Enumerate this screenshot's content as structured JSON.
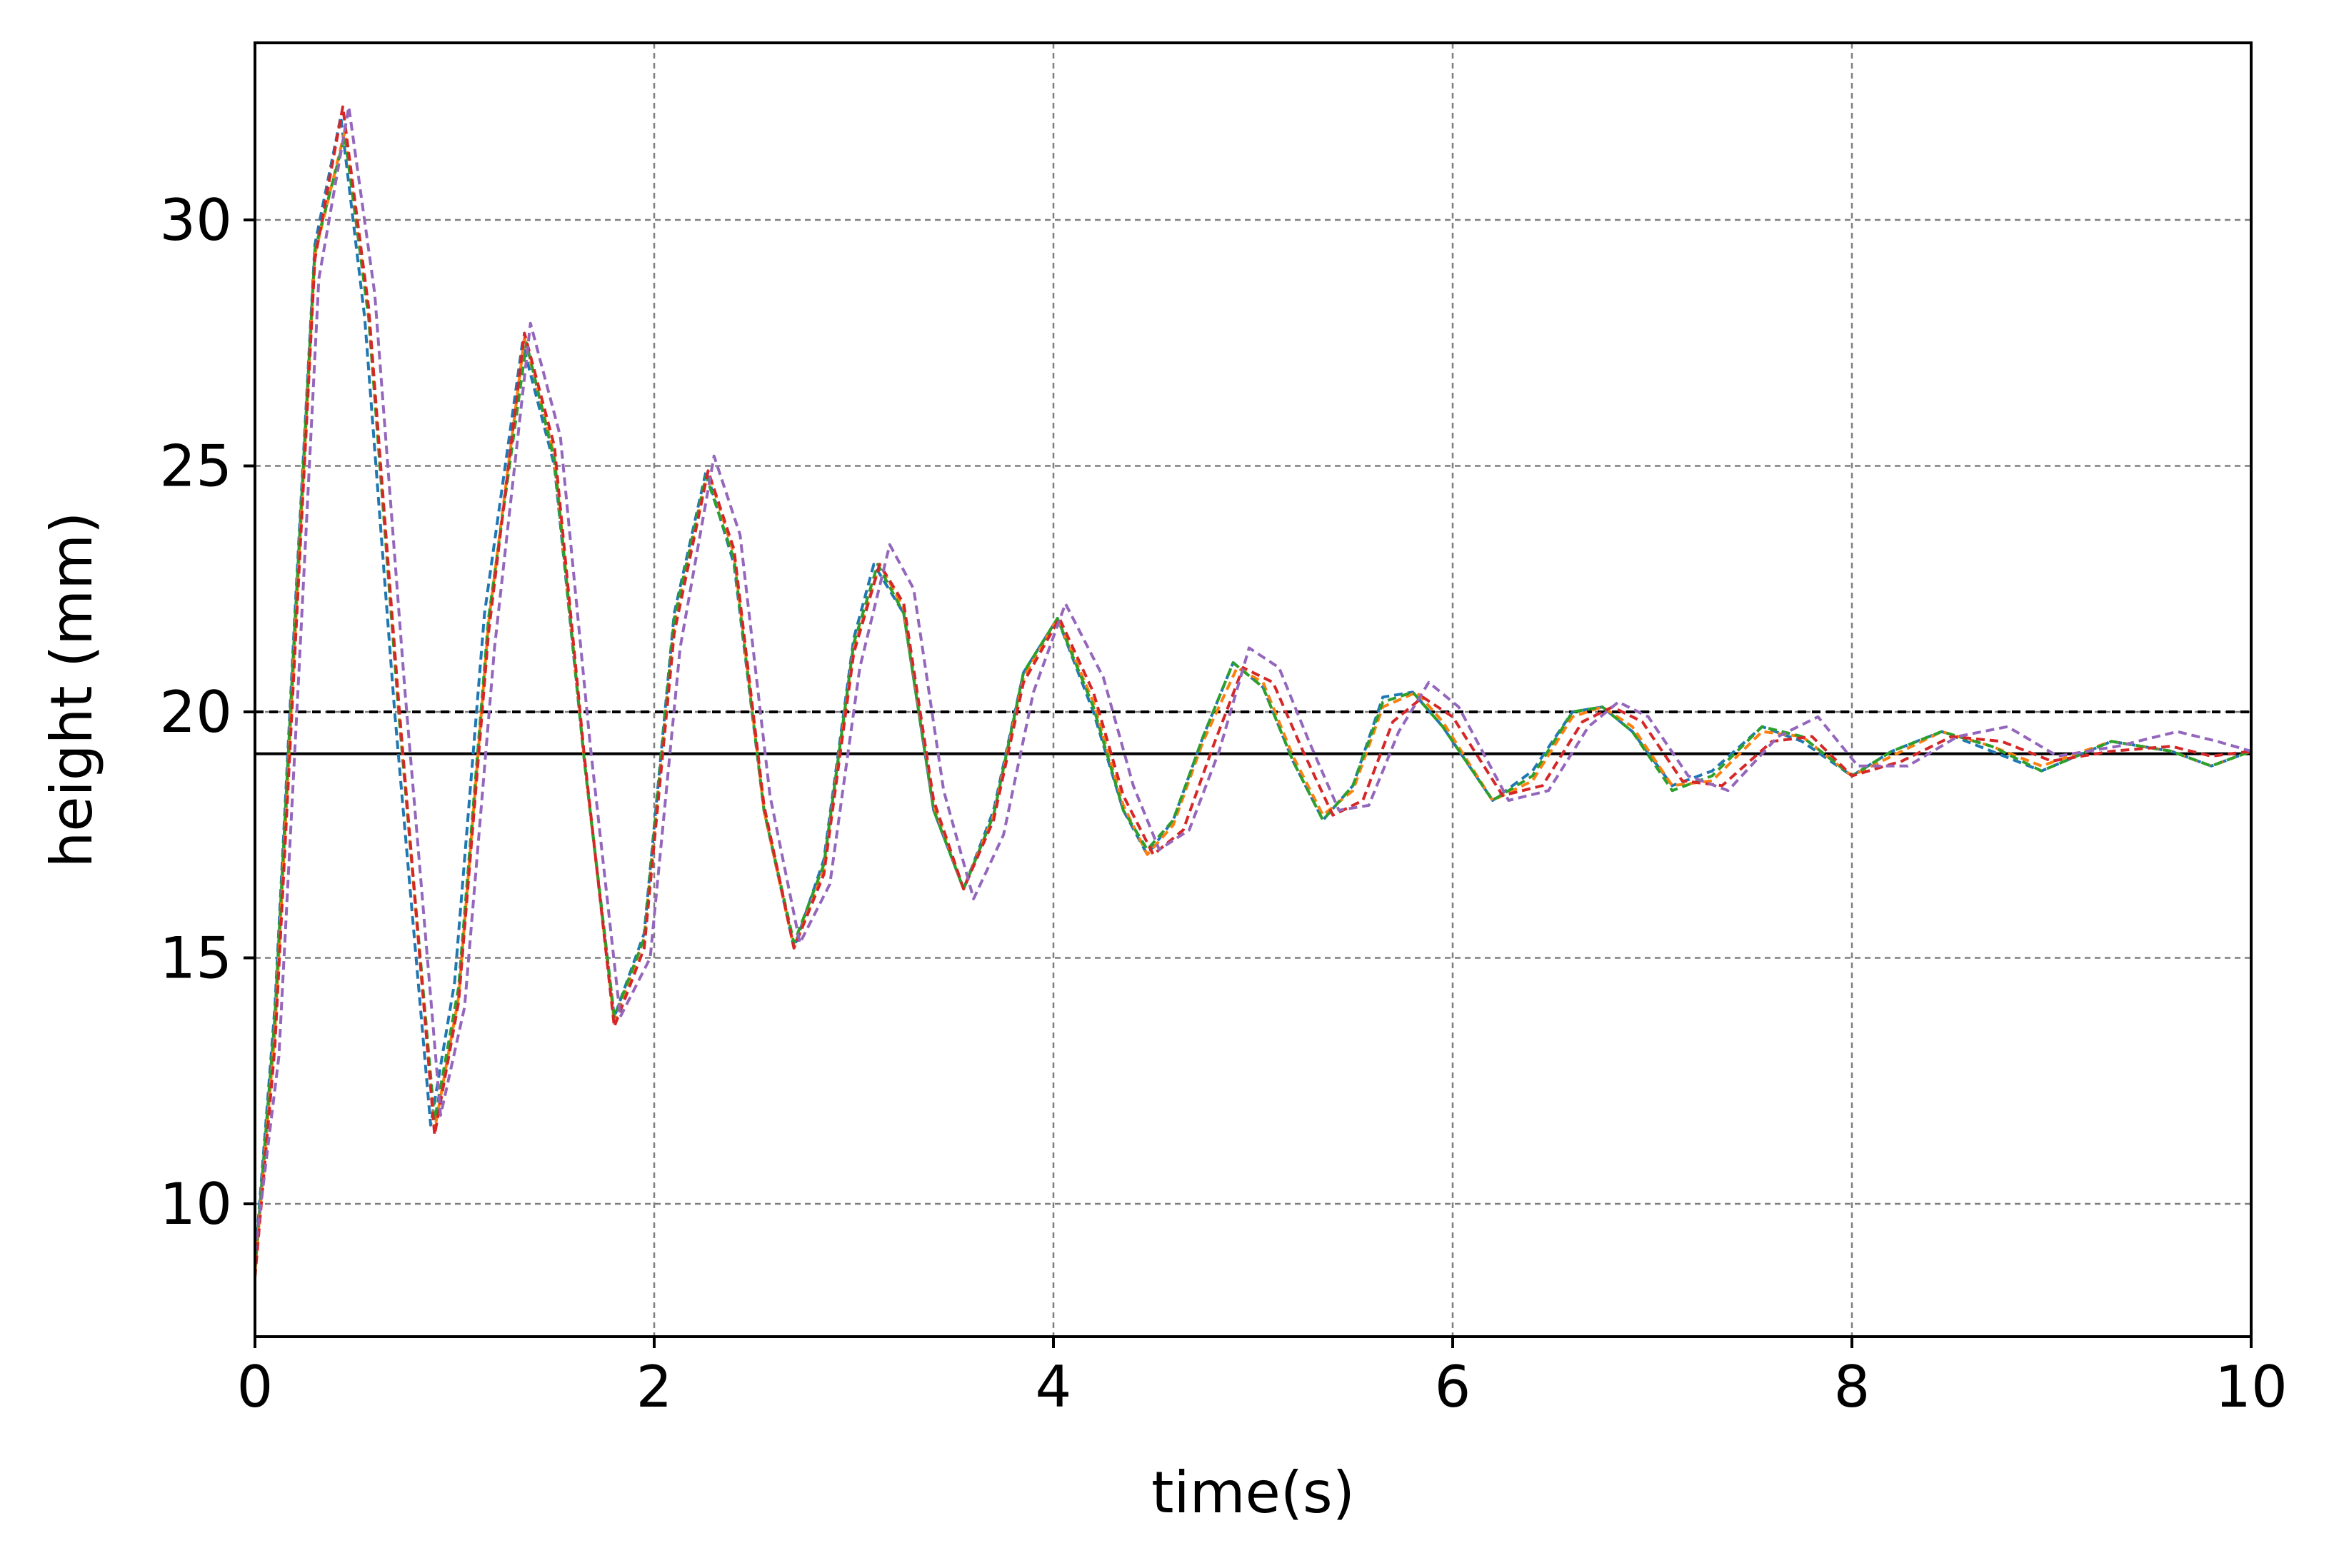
{
  "chart_data": {
    "type": "line",
    "title": "",
    "xlabel": "time(s)",
    "ylabel": "height (mm)",
    "xlim": [
      0,
      10
    ],
    "ylim": [
      7.3,
      33.6
    ],
    "xticks": [
      0,
      2,
      4,
      6,
      8,
      10
    ],
    "yticks": [
      10,
      15,
      20,
      25,
      30
    ],
    "grid": true,
    "legend": "none",
    "reference_lines": [
      {
        "y": 20.0,
        "style": "dashed",
        "color": "#000000"
      },
      {
        "y": 19.15,
        "style": "solid",
        "color": "#000000"
      }
    ],
    "series": [
      {
        "color": "#1f77b4",
        "style": "dashed",
        "x": [
          0,
          0.1,
          0.2,
          0.3,
          0.43,
          0.55,
          0.7,
          0.88,
          1.0,
          1.15,
          1.34,
          1.5,
          1.65,
          1.8,
          1.95,
          2.1,
          2.26,
          2.4,
          2.55,
          2.7,
          2.85,
          3.0,
          3.1,
          3.25,
          3.4,
          3.55,
          3.7,
          3.85,
          4.02,
          4.2,
          4.35,
          4.47,
          4.6,
          4.75,
          4.9,
          5.05,
          5.2,
          5.35,
          5.5,
          5.65,
          5.8,
          5.95,
          6.2,
          6.4,
          6.6,
          6.75,
          6.9,
          7.1,
          7.3,
          7.55,
          7.75,
          8.0,
          8.2,
          8.45,
          8.7,
          8.95,
          9.3,
          9.6,
          9.8,
          10
        ],
        "y": [
          8.8,
          14,
          22,
          29.5,
          32.1,
          28,
          20,
          11.6,
          14.5,
          22,
          27.5,
          25,
          19,
          13.8,
          15.5,
          22,
          24.9,
          23,
          18,
          15.2,
          17,
          21.5,
          23.0,
          22,
          18,
          16.4,
          18,
          20.8,
          21.9,
          20,
          18,
          17.1,
          17.8,
          19.5,
          21.0,
          20.5,
          19,
          17.8,
          18.5,
          20.3,
          20.4,
          19.7,
          18.2,
          18.8,
          20,
          20.1,
          19.6,
          18.5,
          18.8,
          19.7,
          19.4,
          18.7,
          19.2,
          19.6,
          19.2,
          18.8,
          19.4,
          19.2,
          18.9,
          19.2
        ]
      },
      {
        "color": "#ff7f0e",
        "style": "dashed",
        "x": [
          0,
          0.1,
          0.2,
          0.3,
          0.45,
          0.57,
          0.72,
          0.9,
          1.02,
          1.17,
          1.35,
          1.5,
          1.65,
          1.8,
          1.95,
          2.1,
          2.27,
          2.4,
          2.55,
          2.7,
          2.85,
          3.0,
          3.13,
          3.25,
          3.4,
          3.55,
          3.7,
          3.85,
          4.02,
          4.2,
          4.35,
          4.47,
          4.6,
          4.75,
          4.92,
          5.05,
          5.2,
          5.35,
          5.5,
          5.65,
          5.82,
          5.95,
          6.2,
          6.4,
          6.6,
          6.75,
          6.9,
          7.1,
          7.3,
          7.55,
          7.75,
          8.0,
          8.2,
          8.45,
          8.7,
          8.95,
          9.3,
          9.6,
          9.8,
          10
        ],
        "y": [
          8.6,
          13.5,
          21.5,
          29.3,
          31.8,
          28,
          20,
          11.5,
          14.2,
          21.8,
          27.6,
          25.2,
          19,
          13.7,
          15.4,
          21.8,
          24.9,
          23.2,
          18,
          15.2,
          16.8,
          21.3,
          23.0,
          22.1,
          18.1,
          16.4,
          17.9,
          20.7,
          21.9,
          20.2,
          18.1,
          17.1,
          17.7,
          19.4,
          20.9,
          20.6,
          19.1,
          17.9,
          18.4,
          20.1,
          20.4,
          19.8,
          18.2,
          18.6,
          19.9,
          20.1,
          19.7,
          18.5,
          18.6,
          19.6,
          19.5,
          18.7,
          19.1,
          19.6,
          19.3,
          18.9,
          19.4,
          19.2,
          18.9,
          19.2
        ]
      },
      {
        "color": "#2ca02c",
        "style": "dashed",
        "x": [
          0,
          0.1,
          0.2,
          0.3,
          0.45,
          0.57,
          0.72,
          0.9,
          1.02,
          1.17,
          1.36,
          1.5,
          1.65,
          1.8,
          1.95,
          2.1,
          2.26,
          2.4,
          2.55,
          2.7,
          2.85,
          3.0,
          3.12,
          3.25,
          3.4,
          3.55,
          3.7,
          3.85,
          4.02,
          4.2,
          4.35,
          4.47,
          4.6,
          4.75,
          4.9,
          5.05,
          5.2,
          5.35,
          5.5,
          5.65,
          5.8,
          5.95,
          6.2,
          6.4,
          6.6,
          6.75,
          6.9,
          7.1,
          7.3,
          7.55,
          7.75,
          8.0,
          8.2,
          8.45,
          8.7,
          8.95,
          9.3,
          9.6,
          9.8,
          10
        ],
        "y": [
          8.7,
          13.8,
          21.8,
          29.4,
          31.7,
          28,
          20,
          11.7,
          14.4,
          21.9,
          27.5,
          25.1,
          19,
          13.8,
          15.4,
          21.9,
          24.8,
          23.1,
          18,
          15.3,
          16.9,
          21.4,
          23.0,
          22.0,
          18.0,
          16.4,
          17.9,
          20.8,
          21.9,
          20.1,
          18.0,
          17.2,
          17.8,
          19.5,
          21.0,
          20.5,
          19.0,
          17.8,
          18.5,
          20.2,
          20.4,
          19.7,
          18.2,
          18.7,
          20.0,
          20.1,
          19.6,
          18.4,
          18.7,
          19.7,
          19.5,
          18.7,
          19.2,
          19.6,
          19.3,
          18.8,
          19.4,
          19.2,
          18.9,
          19.2
        ]
      },
      {
        "color": "#d62728",
        "style": "dashed",
        "x": [
          0,
          0.1,
          0.2,
          0.3,
          0.44,
          0.57,
          0.72,
          0.9,
          1.02,
          1.17,
          1.35,
          1.5,
          1.65,
          1.8,
          1.95,
          2.1,
          2.27,
          2.4,
          2.55,
          2.7,
          2.85,
          3.0,
          3.13,
          3.25,
          3.4,
          3.55,
          3.7,
          3.85,
          4.03,
          4.2,
          4.35,
          4.5,
          4.65,
          4.8,
          4.95,
          5.1,
          5.25,
          5.4,
          5.55,
          5.7,
          5.85,
          6.0,
          6.25,
          6.45,
          6.65,
          6.8,
          6.95,
          7.15,
          7.35,
          7.6,
          7.8,
          8.0,
          8.25,
          8.5,
          8.75,
          9.0,
          9.3,
          9.6,
          9.8,
          10
        ],
        "y": [
          8.5,
          13.2,
          21.2,
          29.2,
          32.3,
          28.2,
          20.2,
          11.4,
          14.1,
          21.6,
          27.7,
          25.4,
          19.1,
          13.6,
          15.2,
          21.6,
          24.9,
          23.3,
          18.1,
          15.2,
          16.7,
          21.2,
          23.0,
          22.2,
          18.2,
          16.4,
          17.8,
          20.6,
          21.9,
          20.4,
          18.3,
          17.1,
          17.6,
          19.3,
          20.9,
          20.6,
          19.2,
          17.9,
          18.2,
          19.8,
          20.3,
          19.9,
          18.3,
          18.5,
          19.8,
          20.1,
          19.8,
          18.6,
          18.5,
          19.4,
          19.5,
          18.7,
          19.0,
          19.5,
          19.4,
          19.0,
          19.2,
          19.3,
          19.1,
          19.2
        ]
      },
      {
        "color": "#9467bd",
        "style": "dashed",
        "x": [
          0,
          0.12,
          0.22,
          0.32,
          0.47,
          0.6,
          0.75,
          0.93,
          1.05,
          1.2,
          1.38,
          1.53,
          1.68,
          1.83,
          1.98,
          2.13,
          2.3,
          2.43,
          2.58,
          2.73,
          2.88,
          3.03,
          3.18,
          3.3,
          3.45,
          3.6,
          3.75,
          3.9,
          4.06,
          4.25,
          4.4,
          4.53,
          4.68,
          4.83,
          4.98,
          5.13,
          5.28,
          5.43,
          5.58,
          5.73,
          5.88,
          6.03,
          6.28,
          6.48,
          6.68,
          6.83,
          6.98,
          7.18,
          7.38,
          7.63,
          7.83,
          8.03,
          8.28,
          8.53,
          8.78,
          9.03,
          9.33,
          9.63,
          9.83,
          10
        ],
        "y": [
          9.0,
          13.0,
          20.8,
          28.8,
          32.3,
          28.5,
          20.5,
          11.8,
          14.0,
          21.3,
          27.9,
          25.6,
          19.3,
          13.8,
          15.0,
          21.3,
          25.2,
          23.6,
          18.3,
          15.3,
          16.5,
          20.9,
          23.4,
          22.5,
          18.4,
          16.2,
          17.5,
          20.4,
          22.2,
          20.7,
          18.5,
          17.2,
          17.6,
          19.2,
          21.3,
          20.9,
          19.4,
          18.0,
          18.1,
          19.6,
          20.6,
          20.1,
          18.2,
          18.4,
          19.7,
          20.2,
          19.9,
          18.7,
          18.4,
          19.5,
          19.9,
          18.9,
          18.9,
          19.5,
          19.7,
          19.1,
          19.3,
          19.6,
          19.4,
          19.2
        ]
      }
    ]
  }
}
